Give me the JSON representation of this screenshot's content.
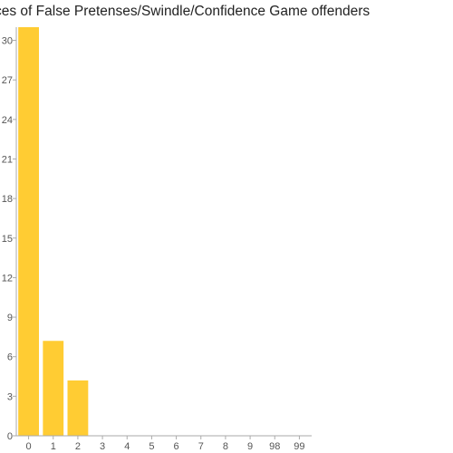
{
  "chart_data": {
    "type": "bar",
    "title": "ces of False Pretenses/Swindle/Confidence Game offenders",
    "xlabel": "",
    "ylabel": "",
    "categories": [
      "0",
      "1",
      "2",
      "3",
      "4",
      "5",
      "6",
      "7",
      "8",
      "9",
      "98",
      "99"
    ],
    "values": [
      31,
      7.2,
      4.2,
      0,
      0,
      0,
      0,
      0,
      0,
      0,
      0,
      0
    ],
    "ylim": [
      0,
      31
    ],
    "yticks": [
      "0",
      "3",
      "6",
      "9",
      "12",
      "15",
      "18",
      "21",
      "24",
      "27",
      "30"
    ],
    "grid": false,
    "legend": "none",
    "bar_color": "#FFCC33",
    "axis_color": "#AAAAAA"
  }
}
